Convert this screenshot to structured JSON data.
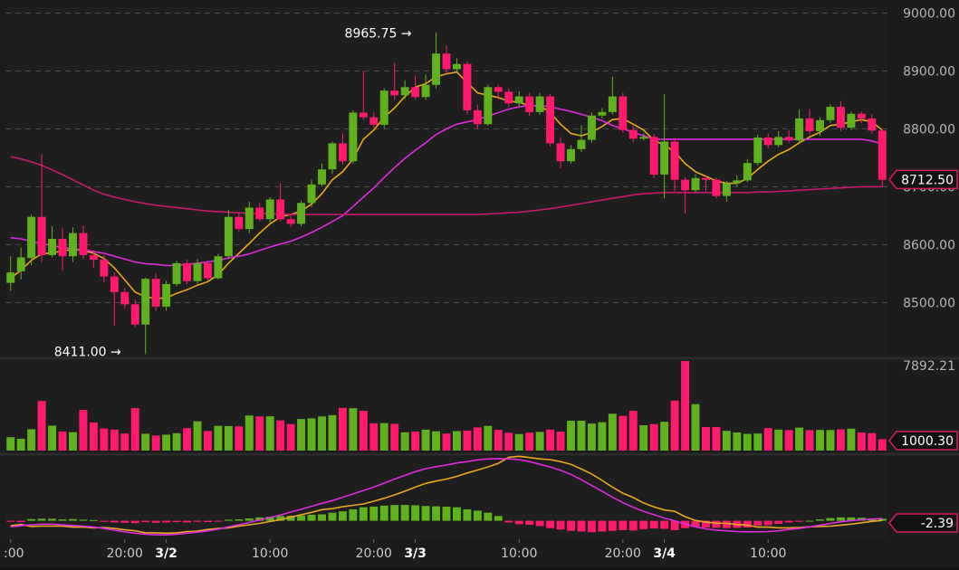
{
  "chart_data": [
    {
      "type": "candlestick",
      "panel": "price",
      "ylim": [
        8410,
        9010
      ],
      "yticks": [
        {
          "value": 9000,
          "label": "9000.00"
        },
        {
          "value": 8900,
          "label": "8900.00"
        },
        {
          "value": 8800,
          "label": "8800.00"
        },
        {
          "value": 8700,
          "label": "8700.00"
        },
        {
          "value": 8600,
          "label": "8600.00"
        },
        {
          "value": 8500,
          "label": "8500.00"
        }
      ],
      "last_price": {
        "value": 8712.5,
        "label": "8712.50"
      },
      "annotations": [
        {
          "label": "8965.75 →",
          "value": 8965.75,
          "bar": 39
        },
        {
          "label": "8411.00 →",
          "value": 8411.0,
          "bar": 11
        }
      ],
      "candles": [
        [
          8534,
          8552,
          8580,
          8520
        ],
        [
          8554,
          8578,
          8595,
          8540
        ],
        [
          8577,
          8648,
          8652,
          8565
        ],
        [
          8648,
          8582,
          8755,
          8570
        ],
        [
          8582,
          8610,
          8632,
          8578
        ],
        [
          8610,
          8580,
          8628,
          8555
        ],
        [
          8580,
          8620,
          8630,
          8570
        ],
        [
          8620,
          8582,
          8633,
          8575
        ],
        [
          8582,
          8574,
          8590,
          8560
        ],
        [
          8574,
          8545,
          8582,
          8535
        ],
        [
          8545,
          8518,
          8552,
          8460
        ],
        [
          8518,
          8497,
          8525,
          8490
        ],
        [
          8497,
          8462,
          8505,
          8458
        ],
        [
          8462,
          8541,
          8543,
          8411
        ],
        [
          8541,
          8493,
          8550,
          8486
        ],
        [
          8493,
          8532,
          8538,
          8486
        ],
        [
          8532,
          8568,
          8572,
          8528
        ],
        [
          8568,
          8537,
          8574,
          8532
        ],
        [
          8537,
          8568,
          8575,
          8532
        ],
        [
          8568,
          8542,
          8573,
          8538
        ],
        [
          8542,
          8580,
          8584,
          8540
        ],
        [
          8580,
          8648,
          8660,
          8575
        ],
        [
          8648,
          8627,
          8656,
          8622
        ],
        [
          8627,
          8664,
          8674,
          8620
        ],
        [
          8664,
          8644,
          8672,
          8640
        ],
        [
          8644,
          8678,
          8682,
          8638
        ],
        [
          8678,
          8644,
          8706,
          8640
        ],
        [
          8644,
          8636,
          8650,
          8630
        ],
        [
          8636,
          8672,
          8676,
          8632
        ],
        [
          8672,
          8704,
          8712,
          8665
        ],
        [
          8704,
          8730,
          8740,
          8700
        ],
        [
          8730,
          8775,
          8778,
          8722
        ],
        [
          8775,
          8744,
          8792,
          8738
        ],
        [
          8744,
          8828,
          8832,
          8740
        ],
        [
          8828,
          8820,
          8900,
          8815
        ],
        [
          8820,
          8807,
          8828,
          8802
        ],
        [
          8807,
          8866,
          8870,
          8800
        ],
        [
          8866,
          8858,
          8914,
          8850
        ],
        [
          8858,
          8872,
          8884,
          8852
        ],
        [
          8872,
          8855,
          8892,
          8850
        ],
        [
          8855,
          8876,
          8894,
          8850
        ],
        [
          8876,
          8930,
          8966,
          8870
        ],
        [
          8930,
          8903,
          8944,
          8895
        ],
        [
          8903,
          8912,
          8922,
          8898
        ],
        [
          8912,
          8832,
          8916,
          8825
        ],
        [
          8832,
          8808,
          8842,
          8800
        ],
        [
          8808,
          8872,
          8876,
          8806
        ],
        [
          8872,
          8864,
          8876,
          8850
        ],
        [
          8864,
          8844,
          8870,
          8837
        ],
        [
          8844,
          8856,
          8865,
          8838
        ],
        [
          8856,
          8829,
          8862,
          8822
        ],
        [
          8829,
          8856,
          8862,
          8824
        ],
        [
          8856,
          8775,
          8860,
          8770
        ],
        [
          8775,
          8744,
          8786,
          8732
        ],
        [
          8744,
          8765,
          8772,
          8740
        ],
        [
          8765,
          8781,
          8806,
          8760
        ],
        [
          8781,
          8823,
          8828,
          8776
        ],
        [
          8823,
          8829,
          8836,
          8818
        ],
        [
          8829,
          8856,
          8890,
          8825
        ],
        [
          8856,
          8798,
          8862,
          8794
        ],
        [
          8798,
          8783,
          8805,
          8777
        ],
        [
          8783,
          8786,
          8792,
          8780
        ],
        [
          8786,
          8721,
          8791,
          8715
        ],
        [
          8721,
          8778,
          8860,
          8680
        ],
        [
          8778,
          8712,
          8784,
          8692
        ],
        [
          8712,
          8694,
          8716,
          8654
        ],
        [
          8694,
          8715,
          8722,
          8690
        ],
        [
          8715,
          8712,
          8718,
          8692
        ],
        [
          8712,
          8684,
          8716,
          8680
        ],
        [
          8684,
          8706,
          8710,
          8674
        ],
        [
          8706,
          8711,
          8720,
          8700
        ],
        [
          8711,
          8741,
          8748,
          8708
        ],
        [
          8741,
          8785,
          8790,
          8736
        ],
        [
          8785,
          8772,
          8792,
          8766
        ],
        [
          8772,
          8786,
          8796,
          8768
        ],
        [
          8786,
          8780,
          8798,
          8776
        ],
        [
          8780,
          8818,
          8834,
          8776
        ],
        [
          8818,
          8796,
          8834,
          8790
        ],
        [
          8796,
          8815,
          8820,
          8788
        ],
        [
          8815,
          8838,
          8843,
          8810
        ],
        [
          8838,
          8802,
          8848,
          8796
        ],
        [
          8802,
          8826,
          8830,
          8798
        ],
        [
          8826,
          8818,
          8830,
          8810
        ],
        [
          8818,
          8797,
          8826,
          8792
        ],
        [
          8797,
          8712,
          8800,
          8700
        ]
      ],
      "moving_averages": [
        {
          "color": "#e8a81e",
          "values": [
            8542,
            8556,
            8573,
            8584,
            8586,
            8589,
            8592,
            8590,
            8585,
            8576,
            8560,
            8539,
            8518,
            8510,
            8507,
            8508,
            8516,
            8522,
            8530,
            8536,
            8548,
            8568,
            8585,
            8602,
            8620,
            8636,
            8648,
            8652,
            8658,
            8670,
            8688,
            8712,
            8726,
            8748,
            8782,
            8798,
            8820,
            8836,
            8856,
            8872,
            8878,
            8890,
            8895,
            8898,
            8880,
            8862,
            8858,
            8854,
            8848,
            8846,
            8840,
            8840,
            8828,
            8808,
            8792,
            8788,
            8794,
            8804,
            8816,
            8818,
            8808,
            8798,
            8780,
            8772,
            8760,
            8740,
            8726,
            8718,
            8710,
            8706,
            8706,
            8714,
            8730,
            8744,
            8756,
            8764,
            8776,
            8786,
            8794,
            8806,
            8808,
            8812,
            8816,
            8812,
            8798
          ]
        },
        {
          "color": "#e02ae0",
          "values": [
            8612,
            8610,
            8606,
            8602,
            8598,
            8595,
            8593,
            8591,
            8588,
            8585,
            8580,
            8575,
            8570,
            8567,
            8566,
            8564,
            8564,
            8566,
            8568,
            8570,
            8573,
            8577,
            8580,
            8584,
            8590,
            8596,
            8601,
            8606,
            8613,
            8621,
            8630,
            8640,
            8650,
            8666,
            8682,
            8698,
            8716,
            8733,
            8749,
            8763,
            8776,
            8790,
            8800,
            8808,
            8812,
            8816,
            8822,
            8828,
            8834,
            8838,
            8840,
            8840,
            8838,
            8834,
            8830,
            8825,
            8820,
            8814,
            8806,
            8800,
            8794,
            8788,
            8782,
            8782,
            8782,
            8782,
            8782,
            8782,
            8782,
            8782,
            8782,
            8782,
            8782,
            8782,
            8782,
            8782,
            8782,
            8782,
            8782,
            8782,
            8782,
            8782,
            8782,
            8779,
            8774
          ]
        },
        {
          "color": "#c8196a",
          "values": [
            8752,
            8748,
            8743,
            8737,
            8729,
            8721,
            8712,
            8703,
            8694,
            8687,
            8682,
            8678,
            8674,
            8671,
            8668,
            8666,
            8664,
            8662,
            8660,
            8658,
            8657,
            8656,
            8655,
            8654,
            8654,
            8653,
            8653,
            8652,
            8652,
            8652,
            8652,
            8652,
            8652,
            8652,
            8652,
            8652,
            8652,
            8652,
            8652,
            8652,
            8652,
            8652,
            8652,
            8652,
            8652,
            8652,
            8653,
            8654,
            8655,
            8656,
            8658,
            8660,
            8662,
            8665,
            8668,
            8671,
            8674,
            8677,
            8680,
            8683,
            8686,
            8688,
            8689,
            8690,
            8690,
            8690,
            8690,
            8690,
            8690,
            8690,
            8690,
            8690,
            8691,
            8691,
            8692,
            8693,
            8694,
            8695,
            8696,
            8697,
            8698,
            8699,
            8700,
            8700,
            8700
          ]
        }
      ]
    },
    {
      "type": "bar",
      "panel": "volume",
      "top_label": "7892.21",
      "last_value": {
        "value": 1000.3,
        "label": "1000.30"
      },
      "ylim": [
        0,
        7892.21
      ],
      "values": [
        1180,
        1040,
        1880,
        4370,
        2200,
        1680,
        1620,
        3580,
        2480,
        1940,
        1840,
        1500,
        3740,
        1480,
        1320,
        1400,
        1530,
        1980,
        2580,
        1720,
        2180,
        2160,
        2130,
        3090,
        3010,
        3020,
        2660,
        2340,
        2780,
        2840,
        3010,
        3120,
        3760,
        3730,
        3500,
        2400,
        2420,
        2350,
        1610,
        1670,
        1840,
        1700,
        1500,
        1720,
        1760,
        2040,
        2170,
        1830,
        1570,
        1460,
        1580,
        1650,
        1850,
        1670,
        2630,
        2630,
        2380,
        2500,
        3250,
        3060,
        3500,
        2230,
        2330,
        2540,
        4400,
        7990,
        4090,
        2070,
        2080,
        1740,
        1590,
        1470,
        1500,
        1980,
        1850,
        1800,
        2020,
        1800,
        1820,
        1810,
        1870,
        1930,
        1590,
        1540,
        1000
      ]
    },
    {
      "type": "macd",
      "panel": "indicator",
      "last_value": {
        "value": -2.39,
        "label": "-2.39"
      },
      "ylim": [
        -55,
        190
      ],
      "histogram": [
        -3,
        -4,
        5,
        6,
        6,
        4,
        5,
        3,
        2,
        -3,
        -5,
        -6,
        -7,
        -4,
        -6,
        -5,
        -4,
        -5,
        -3,
        -4,
        -2,
        3,
        4,
        7,
        10,
        12,
        14,
        15,
        16,
        18,
        19,
        24,
        28,
        34,
        40,
        42,
        45,
        47,
        47,
        46,
        44,
        43,
        42,
        40,
        34,
        30,
        24,
        14,
        -5,
        -10,
        -12,
        -16,
        -22,
        -26,
        -30,
        -32,
        -34,
        -32,
        -30,
        -28,
        -29,
        -25,
        -23,
        -24,
        -28,
        -22,
        -19,
        -20,
        -21,
        -22,
        -21,
        -20,
        -14,
        -13,
        -9,
        -5,
        -3,
        0,
        4,
        8,
        10,
        10,
        9,
        7,
        6
      ],
      "macd_line": [
        -18,
        -15,
        -12,
        -10,
        -10,
        -12,
        -14,
        -16,
        -19,
        -23,
        -28,
        -33,
        -37,
        -40,
        -42,
        -42,
        -40,
        -37,
        -34,
        -30,
        -25,
        -18,
        -12,
        -5,
        2,
        10,
        17,
        26,
        34,
        43,
        52,
        60,
        70,
        80,
        90,
        100,
        112,
        124,
        135,
        146,
        155,
        161,
        166,
        172,
        176,
        181,
        184,
        185,
        184,
        182,
        176,
        168,
        160,
        150,
        138,
        122,
        105,
        88,
        70,
        54,
        40,
        28,
        18,
        8,
        0,
        -10,
        -18,
        -24,
        -28,
        -30,
        -32,
        -33,
        -33,
        -32,
        -30,
        -26,
        -23,
        -18,
        -13,
        -8,
        -3,
        0,
        3,
        5,
        7
      ]
    },
    {
      "type": "axis",
      "panel": "time",
      "ticks": [
        {
          "label": ":00",
          "bar": 0,
          "bold": false
        },
        {
          "label": "20:00",
          "bar": 11,
          "bold": false
        },
        {
          "label": "3/2",
          "bar": 15,
          "bold": true
        },
        {
          "label": "10:00",
          "bar": 25,
          "bold": false
        },
        {
          "label": "20:00",
          "bar": 35,
          "bold": false
        },
        {
          "label": "3/3",
          "bar": 39,
          "bold": true
        },
        {
          "label": "10:00",
          "bar": 49,
          "bold": false
        },
        {
          "label": "20:00",
          "bar": 59,
          "bold": false
        },
        {
          "label": "3/4",
          "bar": 63,
          "bold": true
        },
        {
          "label": "10:00",
          "bar": 73,
          "bold": false
        }
      ]
    }
  ],
  "colors": {
    "up": "#5fb21e",
    "down": "#ff1a6e",
    "signal_line": "#e8a81e",
    "macd_line": "#e02ae0"
  }
}
